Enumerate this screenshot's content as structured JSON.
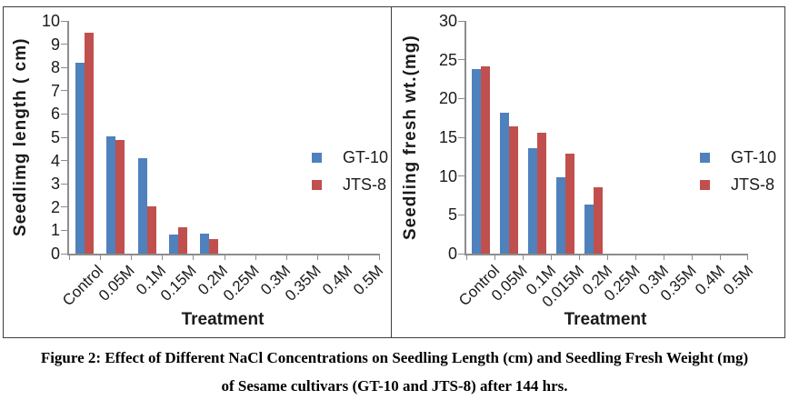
{
  "caption": {
    "line1": "Figure 2: Effect of Different NaCl Concentrations on Seedling Length (cm) and Seedling Fresh Weight (mg)",
    "line2": "of Sesame cultivars (GT-10 and JTS-8) after 144 hrs."
  },
  "colors": {
    "gt10": "#4F81BD",
    "jts8": "#C0504D",
    "axis": "#8c8c8c"
  },
  "chart_data": [
    {
      "type": "bar",
      "title": "",
      "ylabel": "Seedlimg length ( cm)",
      "xlabel": "Treatment",
      "categories": [
        "Control",
        "0.05M",
        "0.1M",
        "0.15M",
        "0.2M",
        "0.25M",
        "0.3M",
        "0.35M",
        "0.4M",
        "0.5M"
      ],
      "series": [
        {
          "name": "GT-10",
          "color": "#4F81BD",
          "values": [
            8.2,
            5.05,
            4.1,
            0.82,
            0.87,
            0,
            0,
            0,
            0,
            0
          ]
        },
        {
          "name": "JTS-8",
          "color": "#C0504D",
          "values": [
            9.5,
            4.9,
            2.05,
            1.13,
            0.63,
            0,
            0,
            0,
            0,
            0
          ]
        }
      ],
      "ylim": [
        0,
        10
      ],
      "ytick_step": 1,
      "grid": false,
      "legend_position": "right"
    },
    {
      "type": "bar",
      "title": "",
      "ylabel": "Seedling fresh wt.(mg)",
      "xlabel": "Treatment",
      "categories": [
        "Control",
        "0.05M",
        "0.1M",
        "0.015M",
        "0.2M",
        "0.25M",
        "0.3M",
        "0.35M",
        "0.4M",
        "0.5M"
      ],
      "series": [
        {
          "name": "GT-10",
          "color": "#4F81BD",
          "values": [
            23.8,
            18.2,
            13.6,
            9.8,
            6.3,
            0,
            0,
            0,
            0,
            0
          ]
        },
        {
          "name": "JTS-8",
          "color": "#C0504D",
          "values": [
            24.1,
            16.4,
            15.6,
            12.9,
            8.6,
            0,
            0,
            0,
            0,
            0
          ]
        }
      ],
      "ylim": [
        0,
        30
      ],
      "ytick_step": 5,
      "grid": false,
      "legend_position": "right"
    }
  ]
}
